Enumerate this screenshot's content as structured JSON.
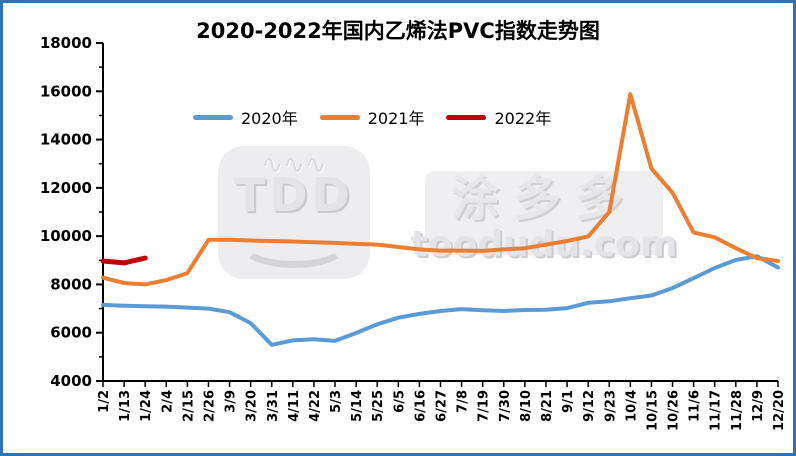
{
  "title": "2020-2022年国内乙烯法PVC指数走势图",
  "frame": {
    "border_color": "#2E74B5",
    "background": "#FFFFFF"
  },
  "watermarks": {
    "logo_text": "TDD",
    "logo_squiggle": "∿∿∿",
    "brand_cn": "涂多多",
    "brand_url": "toodudu.com"
  },
  "chart_data": {
    "type": "line",
    "title": "2020-2022年国内乙烯法PVC指数走势图",
    "xlabel": "",
    "ylabel": "",
    "ylim": [
      4000,
      18000
    ],
    "ytick_step": 2000,
    "grid": false,
    "legend_position": "top",
    "categories": [
      "1/2",
      "1/13",
      "1/24",
      "2/4",
      "2/15",
      "2/26",
      "3/9",
      "3/20",
      "3/31",
      "4/11",
      "4/22",
      "5/3",
      "5/14",
      "5/25",
      "6/5",
      "6/16",
      "6/27",
      "7/8",
      "7/19",
      "7/30",
      "8/10",
      "8/21",
      "9/1",
      "9/12",
      "9/23",
      "10/4",
      "10/15",
      "10/26",
      "11/6",
      "11/17",
      "11/28",
      "12/9",
      "12/20"
    ],
    "series": [
      {
        "name": "2020年",
        "color": "#5B9BD5",
        "values": [
          7150,
          7120,
          7100,
          7080,
          7040,
          7000,
          6850,
          6400,
          5500,
          5680,
          5730,
          5660,
          5990,
          6350,
          6620,
          6780,
          6900,
          6980,
          6930,
          6900,
          6940,
          6950,
          7020,
          7240,
          7300,
          7430,
          7540,
          7850,
          8260,
          8680,
          9010,
          9170,
          8700
        ]
      },
      {
        "name": "2021年",
        "color": "#ED7D31",
        "values": [
          8280,
          8060,
          8000,
          8180,
          8470,
          9850,
          9850,
          9820,
          9800,
          9780,
          9750,
          9720,
          9680,
          9650,
          9550,
          9450,
          9400,
          9400,
          9390,
          9450,
          9500,
          9650,
          9800,
          9990,
          11000,
          15880,
          12800,
          11800,
          10150,
          9950,
          9500,
          9090,
          8970
        ]
      },
      {
        "name": "2022年",
        "color": "#C00000",
        "values": [
          8970,
          8890,
          9090
        ]
      }
    ]
  }
}
